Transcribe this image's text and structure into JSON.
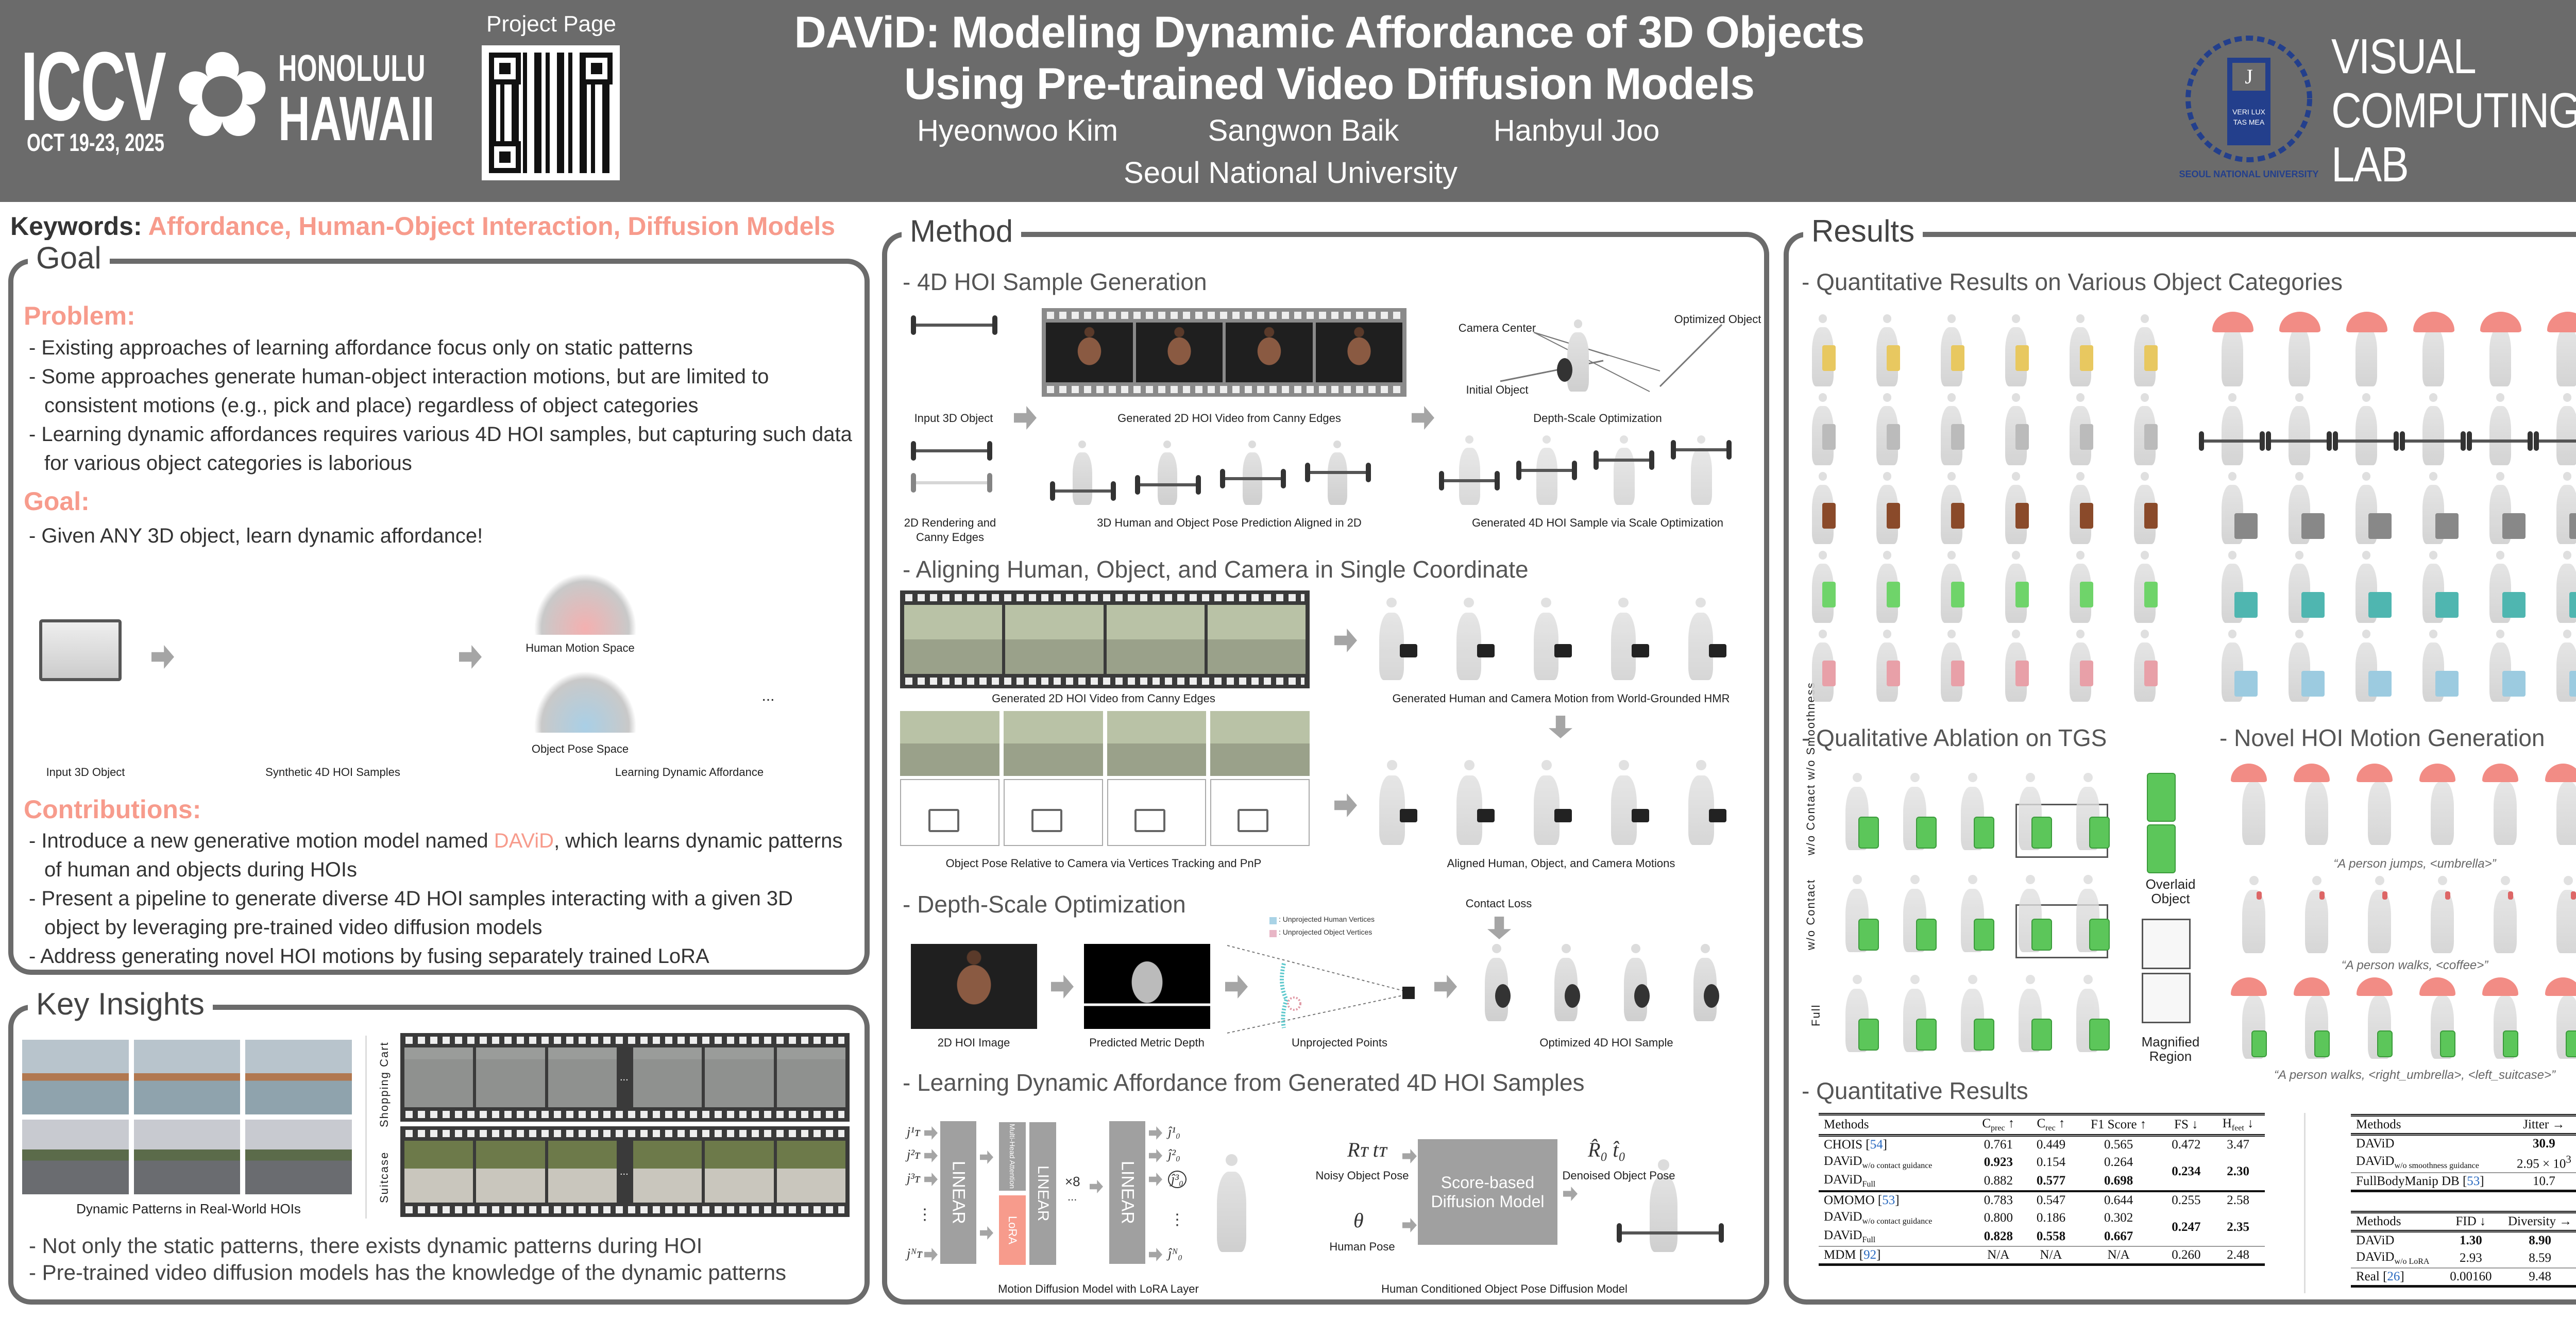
{
  "header": {
    "conference": {
      "name": "ICCV",
      "city": "HONOLULU",
      "state": "HAWAII",
      "dates": "OCT 19-23, 2025"
    },
    "project_page_label": "Project Page",
    "title_line1": "DAViD: Modeling Dynamic Affordance of 3D Objects",
    "title_line2": "Using Pre-trained Video Diffusion Models",
    "authors": [
      "Hyeonwoo Kim",
      "Sangwon Baik",
      "Hanbyul Joo"
    ],
    "affiliation": "Seoul National University",
    "university_logo_text": "SEOUL NATIONAL UNIVERSITY",
    "lab": {
      "line1": "VISUAL",
      "line2": "COMPUTING",
      "line3": "LAB"
    }
  },
  "keywords": {
    "label": "Keywords:",
    "value": "Affordance, Human-Object Interaction, Diffusion Models"
  },
  "goal": {
    "title": "Goal",
    "problem_heading": "Problem:",
    "problem_items": [
      "- Existing approaches of learning affordance focus only on static patterns",
      "- Some approaches generate human-object interaction motions, but are limited to consistent motions (e.g., pick and place) regardless of object categories",
      "- Learning dynamic affordances requires various 4D HOI samples, but capturing such data for various object categories is laborious"
    ],
    "goal_heading": "Goal:",
    "goal_items": [
      "-  Given ANY 3D object, learn dynamic affordance!"
    ],
    "diagram": {
      "input_label": "Input 3D Object",
      "samples_label": "Synthetic 4D HOI Samples",
      "human_space_label": "Human Motion Space",
      "object_space_label": "Object Pose Space",
      "learning_label": "Learning Dynamic Affordance",
      "ellipsis": "..."
    },
    "contributions_heading": "Contributions:",
    "contributions": [
      {
        "pre": "- Introduce a new generative motion model named ",
        "highlight": "DAViD",
        "post": ", which learns dynamic patterns of human and objects during HOIs"
      },
      {
        "pre": "- Present a pipeline to generate diverse 4D HOI samples interacting with a given 3D object by leveraging pre-trained video diffusion models",
        "highlight": "",
        "post": ""
      },
      {
        "pre": "- Address generating novel HOI motions by fusing separately trained LoRA",
        "highlight": "",
        "post": ""
      }
    ]
  },
  "key_insights": {
    "title": "Key Insights",
    "caption": "Dynamic Patterns in Real-World HOIs",
    "film_labels": [
      "Shopping Cart",
      "Suitcase"
    ],
    "ellipsis": "...",
    "items": [
      "- Not only the static patterns, there exists dynamic patterns during HOI",
      "- Pre-trained video diffusion models has the knowledge of the dynamic patterns"
    ]
  },
  "method": {
    "title": "Method",
    "sections": {
      "s1": {
        "heading": "- 4D HOI Sample Generation",
        "input_label": "Input 3D Object",
        "video_label": "Generated 2D HOI Video from Canny Edges",
        "depth_label": "Depth-Scale Optimization",
        "camera_center": "Camera Center",
        "optimized_object": "Optimized Object",
        "initial_object": "Initial Object",
        "rendering_label_1": "2D Rendering and",
        "rendering_label_2": "Canny Edges",
        "pose_label": "3D Human and Object Pose Prediction Aligned in 2D",
        "sample_label": "Generated 4D HOI Sample via Scale Optimization"
      },
      "s2": {
        "heading": "- Aligning Human, Object, and Camera in Single Coordinate",
        "video_label": "Generated 2D HOI Video from Canny Edges",
        "camera_motion_label": "Generated Human and Camera Motion from World-Grounded HMR",
        "object_pose_label": "Object Pose Relative to Camera via Vertices Tracking and PnP",
        "aligned_label": "Aligned Human, Object, and Camera Motions"
      },
      "s3": {
        "heading": "- Depth-Scale Optimization",
        "image_label": "2D HOI Image",
        "depth_label": "Predicted Metric Depth",
        "points_label": "Unprojected Points",
        "optimized_label": "Optimized 4D HOI Sample",
        "contact_loss": "Contact Loss",
        "legend_human": ": Unprojected Human Vertices",
        "legend_object": ": Unprojected Object Vertices"
      },
      "s4": {
        "heading": "- Learning Dynamic Affordance from Generated 4D HOI Samples",
        "linear": "LINEAR",
        "attention": "Multi-Head Attention",
        "lora": "LoRA",
        "repeat": "×8",
        "dots": "...",
        "vdots": "⋮",
        "inputs": [
          "j¹ᴛ",
          "j²ᴛ",
          "j³ᴛ",
          "jᴺᴛ"
        ],
        "outputs": [
          "ĵ¹₀",
          "ĵ²₀",
          "ĵ³₀",
          "ĵᴺ₀"
        ],
        "noisy_symbols": "Rᴛ tᴛ",
        "noisy_label": "Noisy Object Pose",
        "theta": "θ",
        "human_pose_label": "Human Pose",
        "diffusion_box": "Score-based Diffusion Model",
        "denoised_symbols": "R̂₀ t̂₀",
        "denoised_label": "Denoised Object Pose",
        "mdm_caption": "Motion Diffusion Model with LoRA Layer",
        "hoi_caption": "Human Conditioned Object Pose Diffusion Model"
      }
    }
  },
  "results": {
    "title": "Results",
    "categories_heading": "- Quantitative Results on Various Object Categories",
    "ablation_heading": "- Qualitative Ablation on TGS",
    "ablation_rows": [
      "w/o Contact w/o Smoothness",
      "w/o Contact",
      "Full"
    ],
    "overlaid_label_1": "Overlaid",
    "overlaid_label_2": "Object",
    "magnified_label_1": "Magnified",
    "magnified_label_2": "Region",
    "novel_heading": "- Novel HOI Motion Generation",
    "novel_captions": [
      "“A person jumps, <umbrella>”",
      "“A person walks, <coffee>”",
      "“A person walks, <right_umbrella>, <left_suitcase>”"
    ],
    "quant_heading": "- Quantitative Results",
    "table1": {
      "headers": [
        "Methods",
        "C<sub>prec</sub> ↑",
        "C<sub>rec</sub> ↑",
        "F1 Score ↑",
        "FS ↓",
        "H<sub>feet</sub> ↓"
      ],
      "groups": [
        {
          "rows": [
            {
              "name": "CHOIS",
              "ref": "54",
              "sub": "",
              "cells": [
                {
                  "v": "0.761"
                },
                {
                  "v": "0.449"
                },
                {
                  "v": "0.565"
                },
                {
                  "v": "0.472"
                },
                {
                  "v": "3.47"
                }
              ]
            },
            {
              "name": "DAViD",
              "ref": "",
              "sub": "w/o contact guidance",
              "cells": [
                {
                  "v": "0.923",
                  "best": true
                },
                {
                  "v": "0.154"
                },
                {
                  "v": "0.264"
                }
              ]
            },
            {
              "name": "DAViD",
              "ref": "",
              "sub": "Full",
              "cells": [
                {
                  "v": "0.882"
                },
                {
                  "v": "0.577",
                  "best": true
                },
                {
                  "v": "0.698",
                  "best": true
                }
              ]
            }
          ],
          "shared": [
            {
              "v": "0.234",
              "best": true
            },
            {
              "v": "2.30",
              "best": true
            }
          ]
        },
        {
          "rows": [
            {
              "name": "OMOMO",
              "ref": "53",
              "sub": "",
              "cells": [
                {
                  "v": "0.783"
                },
                {
                  "v": "0.547"
                },
                {
                  "v": "0.644"
                },
                {
                  "v": "0.255"
                },
                {
                  "v": "2.58"
                }
              ]
            },
            {
              "name": "DAViD",
              "ref": "",
              "sub": "w/o contact guidance",
              "cells": [
                {
                  "v": "0.800"
                },
                {
                  "v": "0.186"
                },
                {
                  "v": "0.302"
                }
              ]
            },
            {
              "name": "DAViD",
              "ref": "",
              "sub": "Full",
              "cells": [
                {
                  "v": "0.828",
                  "best": true
                },
                {
                  "v": "0.558",
                  "best": true
                },
                {
                  "v": "0.667",
                  "best": true
                }
              ]
            }
          ],
          "shared": [
            {
              "v": "0.247",
              "best": true
            },
            {
              "v": "2.35",
              "best": true
            }
          ]
        },
        {
          "rows": [
            {
              "name": "MDM",
              "ref": "92",
              "sub": "",
              "cells": [
                {
                  "v": "N/A"
                },
                {
                  "v": "N/A"
                },
                {
                  "v": "N/A"
                },
                {
                  "v": "0.260"
                },
                {
                  "v": "2.48"
                }
              ]
            }
          ]
        }
      ]
    },
    "table2": {
      "headers": [
        "Methods",
        "Jitter →"
      ],
      "groups": [
        {
          "rows": [
            {
              "name": "DAViD",
              "ref": "",
              "sub": "",
              "cells": [
                {
                  "v": "30.9",
                  "best": true
                }
              ]
            },
            {
              "name": "DAViD",
              "ref": "",
              "sub": "w/o smoothness guidance",
              "cells": [
                {
                  "v": "2.95 × 10<sup>3</sup>"
                }
              ]
            }
          ]
        },
        {
          "rows": [
            {
              "name": "FullBodyManip DB",
              "ref": "53",
              "sub": "",
              "cells": [
                {
                  "v": "10.7"
                }
              ]
            }
          ]
        }
      ]
    },
    "table3": {
      "headers": [
        "Methods",
        "FID ↓",
        "Diversity →"
      ],
      "groups": [
        {
          "rows": [
            {
              "name": "DAViD",
              "ref": "",
              "sub": "",
              "cells": [
                {
                  "v": "1.30",
                  "best": true
                },
                {
                  "v": "8.90",
                  "best": true
                }
              ]
            },
            {
              "name": "DAViD",
              "ref": "",
              "sub": "w/o LoRA",
              "cells": [
                {
                  "v": "2.93"
                },
                {
                  "v": "8.59"
                }
              ]
            }
          ]
        },
        {
          "rows": [
            {
              "name": "Real",
              "ref": "26",
              "sub": "",
              "cells": [
                {
                  "v": "0.00160"
                },
                {
                  "v": "9.48"
                }
              ]
            }
          ]
        }
      ]
    }
  },
  "colors": {
    "header_bg": "#6b6b6b",
    "accent": "#f79b8c",
    "panel_border": "#6b6b6b",
    "lab_blue": "#233f8c",
    "reference_blue": "#2a6ac0",
    "suitcase_green": "#5cc65a",
    "umbrella_red": "#f28c85"
  }
}
